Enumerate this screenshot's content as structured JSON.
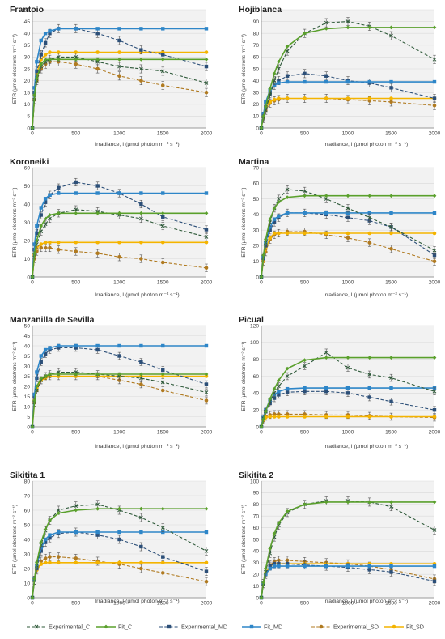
{
  "yaxis_label": "ETR  (µmol electrons m⁻² s⁻¹)",
  "xaxis_label": "Irradiance, I (µmol photon m⁻² s⁻¹)",
  "colors": {
    "C": "#5aa02c",
    "C_exp": "#2f5a3a",
    "MD": "#2e86c8",
    "MD_exp": "#2c4f78",
    "SD": "#f4b400",
    "SD_exp": "#b07a20",
    "grid": "#d9d9d9",
    "axis": "#7f7f7f"
  },
  "legend": [
    {
      "label": "Experimental_C",
      "series": "C",
      "kind": "exp"
    },
    {
      "label": "Fit_C",
      "series": "C",
      "kind": "fit"
    },
    {
      "label": "Experimental_MD",
      "series": "MD",
      "kind": "exp"
    },
    {
      "label": "Fit_MD",
      "series": "MD",
      "kind": "fit"
    },
    {
      "label": "Experimental_SD",
      "series": "SD",
      "kind": "exp"
    },
    {
      "label": "Fit_SD",
      "series": "SD",
      "kind": "fit"
    }
  ],
  "chart_data": [
    {
      "type": "line",
      "title": "Frantoio",
      "x": [
        0,
        25,
        50,
        100,
        150,
        200,
        300,
        500,
        750,
        1000,
        1250,
        1500,
        2000
      ],
      "xlim": [
        0,
        2000
      ],
      "ylim": [
        0,
        50
      ],
      "ystep": 5,
      "xticks": [
        0,
        500,
        1000,
        1500,
        2000
      ],
      "series": [
        {
          "name": "Experimental_C",
          "values": [
            0,
            12,
            20,
            26,
            28,
            29,
            30,
            30,
            28,
            26,
            25,
            24,
            19
          ]
        },
        {
          "name": "Fit_C",
          "values": [
            0,
            14,
            21,
            27,
            29,
            29,
            29,
            29,
            29,
            29,
            29,
            29,
            29
          ]
        },
        {
          "name": "Experimental_MD",
          "values": [
            0,
            15,
            24,
            31,
            36,
            40,
            42,
            42,
            40,
            37,
            33,
            31,
            26
          ]
        },
        {
          "name": "Fit_MD",
          "values": [
            0,
            17,
            28,
            37,
            40,
            41,
            42,
            42,
            42,
            42,
            42,
            42,
            42
          ]
        },
        {
          "name": "Experimental_SD",
          "values": [
            0,
            12,
            20,
            25,
            27,
            28,
            28,
            27,
            25,
            22,
            20,
            18,
            15
          ]
        },
        {
          "name": "Fit_SD",
          "values": [
            0,
            15,
            23,
            29,
            31,
            32,
            32,
            32,
            32,
            32,
            32,
            32,
            32
          ]
        }
      ]
    },
    {
      "type": "line",
      "title": "Hojiblanca",
      "x": [
        0,
        25,
        50,
        100,
        150,
        200,
        300,
        500,
        750,
        1000,
        1250,
        1500,
        2000
      ],
      "xlim": [
        0,
        2000
      ],
      "ylim": [
        0,
        100
      ],
      "ystep": 10,
      "xticks": [
        0,
        500,
        1000,
        1500,
        2000
      ],
      "series": [
        {
          "name": "Experimental_C",
          "values": [
            0,
            8,
            15,
            28,
            40,
            50,
            65,
            80,
            89,
            90,
            86,
            78,
            58
          ]
        },
        {
          "name": "Fit_C",
          "values": [
            0,
            10,
            18,
            33,
            46,
            56,
            69,
            80,
            84,
            85,
            85,
            85,
            85
          ]
        },
        {
          "name": "Experimental_MD",
          "values": [
            0,
            10,
            18,
            29,
            36,
            40,
            44,
            46,
            44,
            40,
            38,
            34,
            25
          ]
        },
        {
          "name": "Fit_MD",
          "values": [
            0,
            12,
            22,
            32,
            36,
            38,
            39,
            39,
            39,
            39,
            39,
            39,
            39
          ]
        },
        {
          "name": "Experimental_SD",
          "values": [
            0,
            9,
            15,
            21,
            23,
            24,
            25,
            25,
            25,
            24,
            23,
            22,
            19
          ]
        },
        {
          "name": "Fit_SD",
          "values": [
            0,
            10,
            17,
            22,
            24,
            25,
            25,
            25,
            25,
            25,
            25,
            25,
            25
          ]
        }
      ]
    },
    {
      "type": "line",
      "title": "Koroneiki",
      "x": [
        0,
        25,
        50,
        100,
        150,
        200,
        300,
        500,
        750,
        1000,
        1250,
        1500,
        2000
      ],
      "xlim": [
        0,
        2000
      ],
      "ylim": [
        0,
        60
      ],
      "ystep": 10,
      "xticks": [
        0,
        500,
        1000,
        1500,
        2000
      ],
      "series": [
        {
          "name": "Experimental_C",
          "values": [
            0,
            12,
            18,
            25,
            29,
            32,
            35,
            37,
            36,
            34,
            32,
            28,
            22
          ]
        },
        {
          "name": "Fit_C",
          "values": [
            0,
            13,
            20,
            28,
            32,
            34,
            35,
            35,
            35,
            35,
            35,
            35,
            35
          ]
        },
        {
          "name": "Experimental_MD",
          "values": [
            0,
            15,
            24,
            34,
            41,
            45,
            49,
            52,
            50,
            46,
            40,
            33,
            26
          ]
        },
        {
          "name": "Fit_MD",
          "values": [
            0,
            18,
            28,
            38,
            43,
            45,
            46,
            46,
            46,
            46,
            46,
            46,
            46
          ]
        },
        {
          "name": "Experimental_SD",
          "values": [
            0,
            10,
            14,
            16,
            16,
            16,
            15,
            14,
            13,
            11,
            10,
            8,
            5
          ]
        },
        {
          "name": "Fit_SD",
          "values": [
            0,
            12,
            16,
            18,
            19,
            19,
            19,
            19,
            19,
            19,
            19,
            19,
            19
          ]
        }
      ]
    },
    {
      "type": "line",
      "title": "Martina",
      "x": [
        0,
        25,
        50,
        100,
        150,
        200,
        300,
        500,
        750,
        1000,
        1250,
        1500,
        2000
      ],
      "xlim": [
        0,
        2000
      ],
      "ylim": [
        0,
        70
      ],
      "ystep": 10,
      "xticks": [
        0,
        500,
        1000,
        1500,
        2000
      ],
      "series": [
        {
          "name": "Experimental_C",
          "values": [
            0,
            13,
            22,
            35,
            44,
            50,
            56,
            55,
            50,
            44,
            38,
            32,
            17
          ]
        },
        {
          "name": "Fit_C",
          "values": [
            0,
            14,
            24,
            37,
            44,
            48,
            51,
            52,
            52,
            52,
            52,
            52,
            52
          ]
        },
        {
          "name": "Experimental_MD",
          "values": [
            0,
            12,
            20,
            30,
            35,
            38,
            41,
            41,
            40,
            38,
            36,
            32,
            14
          ]
        },
        {
          "name": "Fit_MD",
          "values": [
            0,
            13,
            22,
            32,
            37,
            39,
            41,
            41,
            41,
            41,
            41,
            41,
            41
          ]
        },
        {
          "name": "Experimental_SD",
          "values": [
            0,
            10,
            16,
            24,
            27,
            28,
            29,
            29,
            27,
            25,
            22,
            18,
            10
          ]
        },
        {
          "name": "Fit_SD",
          "values": [
            0,
            11,
            18,
            25,
            28,
            28,
            28,
            28,
            28,
            28,
            28,
            28,
            28
          ]
        }
      ]
    },
    {
      "type": "line",
      "title": "Manzanilla de Sevilla",
      "x": [
        0,
        25,
        50,
        100,
        150,
        200,
        300,
        500,
        750,
        1000,
        1250,
        1500,
        2000
      ],
      "xlim": [
        0,
        2000
      ],
      "ylim": [
        0,
        50
      ],
      "ystep": 5,
      "xticks": [
        0,
        500,
        1000,
        1500,
        2000
      ],
      "series": [
        {
          "name": "Experimental_C",
          "values": [
            0,
            12,
            18,
            23,
            25,
            26,
            27,
            27,
            26,
            25,
            24,
            22,
            17
          ]
        },
        {
          "name": "Fit_C",
          "values": [
            0,
            13,
            20,
            24,
            25,
            26,
            26,
            26,
            26,
            26,
            26,
            26,
            26
          ]
        },
        {
          "name": "Experimental_MD",
          "values": [
            0,
            15,
            24,
            32,
            36,
            38,
            39,
            39,
            38,
            35,
            32,
            28,
            21
          ]
        },
        {
          "name": "Fit_MD",
          "values": [
            0,
            16,
            27,
            35,
            38,
            39,
            40,
            40,
            40,
            40,
            40,
            40,
            40
          ]
        },
        {
          "name": "Experimental_SD",
          "values": [
            0,
            12,
            18,
            23,
            25,
            25,
            25,
            25,
            25,
            23,
            21,
            18,
            13
          ]
        },
        {
          "name": "Fit_SD",
          "values": [
            0,
            13,
            19,
            23,
            24,
            25,
            25,
            25,
            25,
            25,
            25,
            25,
            25
          ]
        }
      ]
    },
    {
      "type": "line",
      "title": "Picual",
      "x": [
        0,
        25,
        50,
        100,
        150,
        200,
        300,
        500,
        750,
        1000,
        1250,
        1500,
        2000
      ],
      "xlim": [
        0,
        2000
      ],
      "ylim": [
        0,
        120
      ],
      "ystep": 20,
      "xticks": [
        0,
        500,
        1000,
        1500,
        2000
      ],
      "series": [
        {
          "name": "Experimental_C",
          "values": [
            0,
            10,
            18,
            30,
            40,
            48,
            60,
            72,
            88,
            70,
            62,
            58,
            42
          ]
        },
        {
          "name": "Fit_C",
          "values": [
            0,
            9,
            18,
            33,
            45,
            55,
            69,
            79,
            82,
            82,
            82,
            82,
            82
          ]
        },
        {
          "name": "Experimental_MD",
          "values": [
            0,
            10,
            18,
            28,
            34,
            38,
            41,
            42,
            42,
            40,
            35,
            30,
            20
          ]
        },
        {
          "name": "Fit_MD",
          "values": [
            0,
            11,
            20,
            32,
            38,
            42,
            45,
            46,
            46,
            46,
            46,
            46,
            46
          ]
        },
        {
          "name": "Experimental_SD",
          "values": [
            0,
            8,
            12,
            14,
            15,
            15,
            15,
            15,
            14,
            14,
            13,
            12,
            11
          ]
        },
        {
          "name": "Fit_SD",
          "values": [
            0,
            8,
            11,
            12,
            12,
            12,
            12,
            12,
            12,
            12,
            12,
            12,
            12
          ]
        }
      ]
    },
    {
      "type": "line",
      "title": "Sikitita 1",
      "x": [
        0,
        25,
        50,
        100,
        150,
        200,
        300,
        500,
        750,
        1000,
        1250,
        1500,
        2000
      ],
      "xlim": [
        0,
        2000
      ],
      "ylim": [
        0,
        80
      ],
      "ystep": 10,
      "xticks": [
        0,
        500,
        1000,
        1500,
        2000
      ],
      "series": [
        {
          "name": "Experimental_C",
          "values": [
            0,
            12,
            22,
            36,
            46,
            53,
            60,
            63,
            64,
            60,
            55,
            48,
            32
          ]
        },
        {
          "name": "Fit_C",
          "values": [
            0,
            13,
            24,
            38,
            47,
            53,
            58,
            60,
            61,
            61,
            61,
            61,
            61
          ]
        },
        {
          "name": "Experimental_MD",
          "values": [
            0,
            12,
            20,
            32,
            38,
            41,
            44,
            45,
            43,
            40,
            35,
            28,
            18
          ]
        },
        {
          "name": "Fit_MD",
          "values": [
            0,
            13,
            22,
            34,
            40,
            43,
            45,
            45,
            45,
            45,
            45,
            45,
            45
          ]
        },
        {
          "name": "Experimental_SD",
          "values": [
            0,
            12,
            19,
            25,
            27,
            28,
            28,
            27,
            25,
            23,
            20,
            17,
            11
          ]
        },
        {
          "name": "Fit_SD",
          "values": [
            0,
            13,
            19,
            23,
            24,
            24,
            24,
            24,
            24,
            24,
            24,
            24,
            24
          ]
        }
      ]
    },
    {
      "type": "line",
      "title": "Sikitita 2",
      "x": [
        0,
        25,
        50,
        100,
        150,
        200,
        300,
        500,
        750,
        1000,
        1250,
        1500,
        2000
      ],
      "xlim": [
        0,
        2000
      ],
      "ylim": [
        0,
        100
      ],
      "ystep": 10,
      "xticks": [
        0,
        500,
        1000,
        1500,
        2000
      ],
      "series": [
        {
          "name": "Experimental_C",
          "values": [
            0,
            12,
            22,
            38,
            52,
            62,
            73,
            80,
            83,
            83,
            82,
            78,
            58
          ]
        },
        {
          "name": "Fit_C",
          "values": [
            0,
            13,
            25,
            42,
            55,
            64,
            74,
            80,
            82,
            82,
            82,
            82,
            82
          ]
        },
        {
          "name": "Experimental_MD",
          "values": [
            0,
            12,
            20,
            27,
            29,
            29,
            29,
            28,
            27,
            26,
            24,
            22,
            14
          ]
        },
        {
          "name": "Fit_MD",
          "values": [
            0,
            13,
            20,
            25,
            27,
            27,
            27,
            27,
            27,
            27,
            27,
            27,
            27
          ]
        },
        {
          "name": "Experimental_SD",
          "values": [
            0,
            12,
            20,
            28,
            31,
            32,
            32,
            31,
            30,
            29,
            27,
            24,
            16
          ]
        },
        {
          "name": "Fit_SD",
          "values": [
            0,
            13,
            21,
            27,
            29,
            29,
            29,
            29,
            29,
            29,
            29,
            29,
            29
          ]
        }
      ]
    }
  ]
}
